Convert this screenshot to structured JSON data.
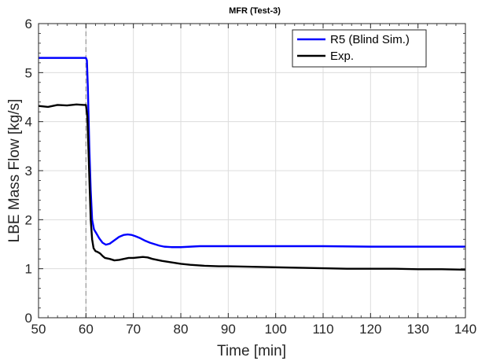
{
  "chart_data": {
    "type": "line",
    "title": "MFR (Test-3)",
    "xlabel": "Time [min]",
    "ylabel": "LBE Mass Flow [kg/s]",
    "xlim": [
      50,
      140
    ],
    "ylim": [
      0,
      6
    ],
    "xticks": [
      50,
      60,
      70,
      80,
      90,
      100,
      110,
      120,
      130,
      140
    ],
    "yticks": [
      0,
      1,
      2,
      3,
      4,
      5,
      6
    ],
    "grid": true,
    "legend_position": "top-right",
    "vertical_reference_line": {
      "x": 60,
      "style": "dashed",
      "color": "#999999"
    },
    "series": [
      {
        "name": "R5 (Blind Sim.)",
        "color": "#0000ff",
        "x": [
          50,
          60,
          60.2,
          60.4,
          60.7,
          61.0,
          61.3,
          61.7,
          62.2,
          62.8,
          63.5,
          64.2,
          65.0,
          66.0,
          67.0,
          68.0,
          68.8,
          69.6,
          70.5,
          71.5,
          72.5,
          73.5,
          74.5,
          75.5,
          76.5,
          78.0,
          80.0,
          82.0,
          84.0,
          86.0,
          90.0,
          100.0,
          110.0,
          120.0,
          130.0,
          140.0
        ],
        "y": [
          5.3,
          5.3,
          5.25,
          4.7,
          3.5,
          2.6,
          2.0,
          1.8,
          1.72,
          1.62,
          1.53,
          1.49,
          1.51,
          1.58,
          1.65,
          1.69,
          1.7,
          1.69,
          1.66,
          1.62,
          1.57,
          1.53,
          1.5,
          1.47,
          1.45,
          1.44,
          1.44,
          1.45,
          1.46,
          1.46,
          1.46,
          1.46,
          1.46,
          1.45,
          1.45,
          1.45
        ]
      },
      {
        "name": "Exp.",
        "color": "#000000",
        "x": [
          50,
          52,
          54,
          56,
          58,
          59.5,
          60.0,
          60.3,
          60.5,
          60.8,
          61.0,
          61.3,
          61.6,
          62.0,
          62.5,
          63.0,
          63.5,
          64.0,
          65.0,
          66.0,
          67.0,
          68.0,
          69.0,
          70.0,
          71.0,
          72.0,
          73.0,
          74.0,
          75.0,
          76.0,
          78.0,
          80.0,
          82.0,
          85.0,
          88.0,
          90.0,
          95.0,
          100.0,
          105.0,
          110.0,
          115.0,
          120.0,
          125.0,
          130.0,
          135.0,
          140.0
        ],
        "y": [
          4.32,
          4.3,
          4.34,
          4.33,
          4.35,
          4.34,
          4.34,
          4.1,
          3.5,
          2.6,
          2.0,
          1.6,
          1.42,
          1.36,
          1.34,
          1.31,
          1.26,
          1.22,
          1.2,
          1.17,
          1.18,
          1.2,
          1.22,
          1.22,
          1.23,
          1.24,
          1.23,
          1.2,
          1.18,
          1.16,
          1.13,
          1.1,
          1.08,
          1.06,
          1.05,
          1.05,
          1.04,
          1.03,
          1.02,
          1.01,
          1.0,
          1.0,
          1.0,
          0.99,
          0.99,
          0.98
        ]
      }
    ]
  }
}
